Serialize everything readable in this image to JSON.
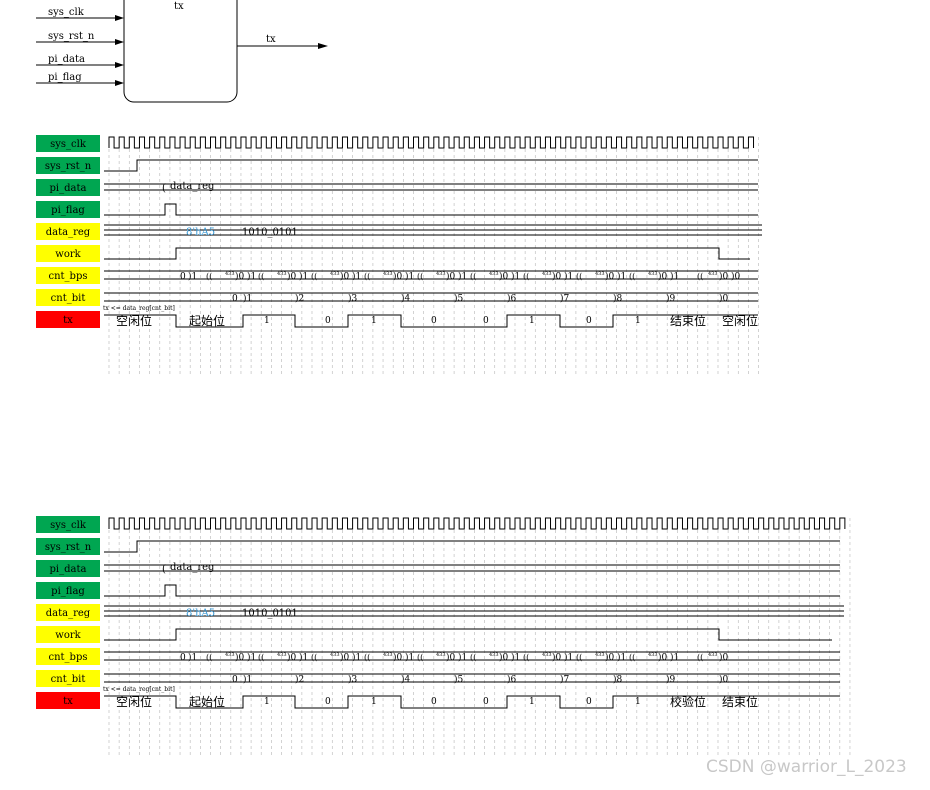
{
  "block": {
    "name": "tx",
    "inputs": [
      "sys_clk",
      "sys_rst_n",
      "pi_data",
      "pi_flag"
    ],
    "output": "tx"
  },
  "colors": {
    "green": "#00a651",
    "yellow": "#ffff00",
    "red": "#ff0000",
    "blue": "#3b9ad6",
    "grid": "#c0c0c0"
  },
  "waveforms": [
    {
      "signals": [
        {
          "label": "sys_clk",
          "color": "green"
        },
        {
          "label": "sys_rst_n",
          "color": "green"
        },
        {
          "label": "pi_data",
          "color": "green"
        },
        {
          "label": "pi_flag",
          "color": "green"
        },
        {
          "label": "data_reg",
          "color": "yellow"
        },
        {
          "label": "work",
          "color": "yellow"
        },
        {
          "label": "cnt_bps",
          "color": "yellow"
        },
        {
          "label": "cnt_bit",
          "color": "yellow"
        },
        {
          "label": "tx",
          "color": "red"
        }
      ],
      "pi_data_value": "data_reg",
      "data_reg_value": "8'hA5",
      "data_reg_bits": "1010_0101",
      "annotation": "tx <= data_reg[cnt_bit]",
      "cnt_bps_start": [
        "0",
        "1"
      ],
      "cnt_bps_seg_values": [
        "0",
        "1"
      ],
      "cnt_bps_mid": "433",
      "cnt_bps_end": [
        "0",
        "0"
      ],
      "cnt_bit_values": [
        "0",
        "1",
        "2",
        "3",
        "4",
        "5",
        "6",
        "7",
        "8",
        "9",
        "0"
      ],
      "tx_labels": [
        "空闲位",
        "起始位",
        "1",
        "0",
        "1",
        "0",
        "0",
        "1",
        "0",
        "1",
        "结束位",
        "空闲位"
      ]
    },
    {
      "signals": [
        {
          "label": "sys_clk",
          "color": "green"
        },
        {
          "label": "sys_rst_n",
          "color": "green"
        },
        {
          "label": "pi_data",
          "color": "green"
        },
        {
          "label": "pi_flag",
          "color": "green"
        },
        {
          "label": "data_reg",
          "color": "yellow"
        },
        {
          "label": "work",
          "color": "yellow"
        },
        {
          "label": "cnt_bps",
          "color": "yellow"
        },
        {
          "label": "cnt_bit",
          "color": "yellow"
        },
        {
          "label": "tx",
          "color": "red"
        }
      ],
      "pi_data_value": "data_reg",
      "data_reg_value": "8'hA5",
      "data_reg_bits": "1010_0101",
      "annotation": "tx <= data_reg[cnt_bit]",
      "cnt_bps_start": [
        "0",
        "1"
      ],
      "cnt_bps_seg_values": [
        "0",
        "1"
      ],
      "cnt_bps_mid": "433",
      "cnt_bps_end": [
        "0"
      ],
      "cnt_bit_values": [
        "0",
        "1",
        "2",
        "3",
        "4",
        "5",
        "6",
        "7",
        "8",
        "9",
        "0"
      ],
      "tx_labels": [
        "空闲位",
        "起始位",
        "1",
        "0",
        "1",
        "0",
        "0",
        "1",
        "0",
        "1",
        "校验位",
        "结束位"
      ]
    }
  ],
  "watermark": "CSDN @warrior_L_2023"
}
